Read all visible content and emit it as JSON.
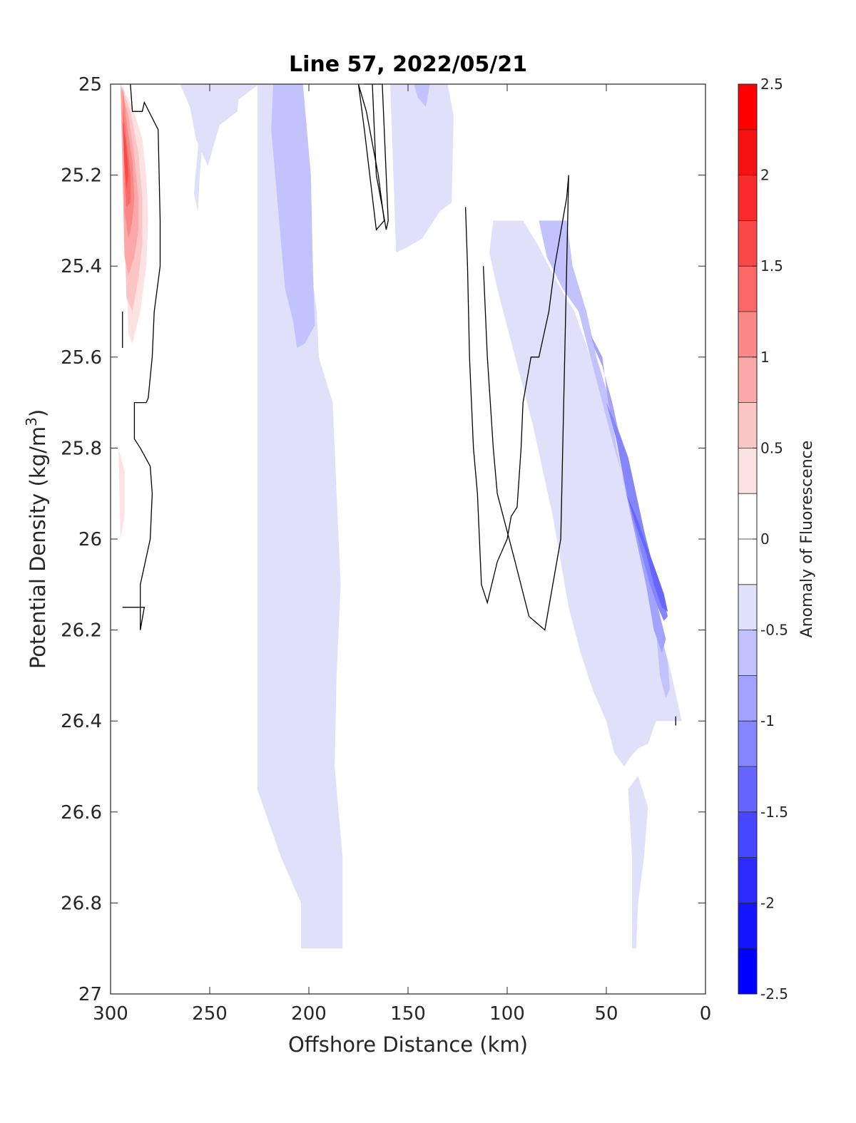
{
  "chart_data": {
    "type": "filled-contour",
    "title": "Line 57, 2022/05/21",
    "xlabel": "Offshore Distance (km)",
    "ylabel_main": "Potential Density (kg/m",
    "ylabel_sup": "3",
    "ylabel_close": ")",
    "colorbar_label": "Anomaly of Fluorescence",
    "xlim": [
      300,
      0
    ],
    "x_reversed": true,
    "ylim": [
      25,
      27
    ],
    "y_reversed": true,
    "x_ticks": [
      300,
      250,
      200,
      150,
      100,
      50,
      0
    ],
    "x_tick_labels": [
      "300",
      "250",
      "200",
      "150",
      "100",
      "50",
      "0"
    ],
    "y_ticks": [
      25,
      25.2,
      25.4,
      25.6,
      25.8,
      26,
      26.2,
      26.4,
      26.6,
      26.8,
      27
    ],
    "y_tick_labels": [
      "25",
      "25.2",
      "25.4",
      "25.6",
      "25.8",
      "26",
      "26.2",
      "26.4",
      "26.6",
      "26.8",
      "27"
    ],
    "colorbar_range": [
      -2.5,
      2.5
    ],
    "colorbar_ticks": [
      2.5,
      2,
      1.5,
      1,
      0.5,
      0,
      -0.5,
      -1,
      -1.5,
      -2,
      -2.5
    ],
    "colorbar_tick_labels": [
      "2.5",
      "2",
      "1.5",
      "1",
      "0.5",
      "0",
      "-0.5",
      "-1",
      "-1.5",
      "-2",
      "-2.5"
    ],
    "colormap": [
      "#0000ff",
      "#1414ff",
      "#2b2bff",
      "#4747ff",
      "#6666ff",
      "#8585ff",
      "#a3a3ff",
      "#c2c2ff",
      "#e0e0fa",
      "#ffffff",
      "#ffffff",
      "#fde2e2",
      "#fcc6c6",
      "#fca8a8",
      "#fb8888",
      "#fa6868",
      "#f94848",
      "#f82a2a",
      "#f71212",
      "#ff0000"
    ],
    "contour_regions": [
      {
        "name": "negative-band-offshore-main",
        "level": -0.25,
        "color": "#e0e0fa",
        "x": [
          225,
          220,
          215,
          211,
          207,
          205,
          203,
          204,
          199,
          196,
          195,
          188,
          186,
          184,
          186,
          187,
          183,
          183,
          204,
          204,
          214,
          222,
          226,
          226
        ],
        "y": [
          25.0,
          25.0,
          25.0,
          25.0,
          25.0,
          25.0,
          25.0,
          25.3,
          25.4,
          25.5,
          25.6,
          25.7,
          25.9,
          26.1,
          26.3,
          26.5,
          26.7,
          26.9,
          26.9,
          26.8,
          26.7,
          26.6,
          26.55,
          25.0
        ]
      },
      {
        "name": "negative-band-offshore-west",
        "level": -0.25,
        "color": "#e0e0fa",
        "x": [
          253,
          246,
          242,
          238,
          232,
          225,
          225,
          253,
          255,
          256,
          258,
          253
        ],
        "y": [
          25.0,
          25.0,
          25.0,
          25.0,
          25.0,
          25.0,
          25.0,
          25.09,
          25.2,
          25.28,
          25.24,
          25.0
        ]
      },
      {
        "name": "negative-band-offshore-west-2",
        "level": -0.25,
        "color": "#e0e0fa",
        "x": [
          253,
          265,
          260,
          257,
          251,
          245,
          236,
          235,
          253
        ],
        "y": [
          25.0,
          25.0,
          25.05,
          25.12,
          25.18,
          25.09,
          25.06,
          25.0,
          25.0
        ]
      },
      {
        "name": "negative-band-mid",
        "level": -0.25,
        "color": "#e0e0fa",
        "x": [
          159,
          130,
          127,
          128,
          134,
          143,
          151,
          156,
          159
        ],
        "y": [
          25.0,
          25.0,
          25.07,
          25.26,
          25.28,
          25.34,
          25.36,
          25.37,
          25.0
        ]
      },
      {
        "name": "negative-band-coastal",
        "level": -0.25,
        "color": "#e0e0fa",
        "x": [
          92,
          107,
          109,
          105,
          99,
          93,
          87,
          82,
          77,
          73,
          69,
          63,
          57,
          50,
          46,
          41,
          38,
          34,
          29,
          25,
          20,
          15,
          12,
          17,
          23,
          27,
          34,
          37,
          42,
          50,
          58,
          66,
          73,
          79,
          85,
          92
        ],
        "y": [
          25.3,
          25.3,
          25.37,
          25.45,
          25.55,
          25.65,
          25.75,
          25.85,
          25.95,
          26.05,
          26.15,
          26.25,
          26.33,
          26.4,
          26.47,
          26.5,
          26.48,
          26.46,
          26.45,
          26.4,
          26.4,
          26.4,
          26.4,
          26.3,
          26.2,
          26.1,
          26.0,
          25.9,
          25.8,
          25.7,
          25.6,
          25.5,
          25.45,
          25.4,
          25.35,
          25.3
        ]
      },
      {
        "name": "negative-band-deep-coastal",
        "level": -0.25,
        "color": "#e0e0fa",
        "x": [
          39,
          34,
          29,
          31,
          34,
          35,
          37,
          37,
          39
        ],
        "y": [
          26.55,
          26.52,
          26.59,
          26.7,
          26.8,
          26.9,
          26.9,
          26.7,
          26.55
        ]
      },
      {
        "name": "negative-band-offshore-level2",
        "level": -0.5,
        "color": "#c2c2ff",
        "x": [
          218,
          203,
          199,
          198,
          197,
          202,
          206,
          208,
          212,
          215,
          219,
          218
        ],
        "y": [
          25.0,
          25.0,
          25.2,
          25.4,
          25.53,
          25.57,
          25.58,
          25.52,
          25.45,
          25.3,
          25.1,
          25.0
        ]
      },
      {
        "name": "negative-band-mid-level2",
        "level": -0.5,
        "color": "#c2c2ff",
        "x": [
          147,
          139,
          141,
          145,
          147
        ],
        "y": [
          25.0,
          25.0,
          25.05,
          25.03,
          25.0
        ]
      },
      {
        "name": "negative-band-coastal-level2",
        "level": -0.5,
        "color": "#c2c2ff",
        "x": [
          84,
          70,
          67,
          60,
          55,
          48,
          45,
          40,
          35,
          30,
          25,
          23,
          20,
          18,
          19,
          23,
          27,
          33,
          39,
          46,
          52,
          58,
          64,
          72,
          80,
          84
        ],
        "y": [
          25.3,
          25.3,
          25.4,
          25.5,
          25.6,
          25.7,
          25.8,
          25.9,
          26.0,
          26.1,
          26.2,
          26.3,
          26.35,
          26.33,
          26.27,
          26.2,
          26.1,
          26.0,
          25.9,
          25.8,
          25.7,
          25.6,
          25.5,
          25.45,
          25.38,
          25.3
        ]
      },
      {
        "name": "negative-band-coastal-level3",
        "level": -0.75,
        "color": "#a3a3ff",
        "x": [
          58,
          52,
          49,
          44,
          40,
          35,
          30,
          26,
          22,
          20,
          24,
          27,
          32,
          37,
          42,
          47,
          52,
          56,
          58
        ],
        "y": [
          25.55,
          25.6,
          25.7,
          25.8,
          25.9,
          26.0,
          26.1,
          26.2,
          26.25,
          26.22,
          26.15,
          26.08,
          26.0,
          25.9,
          25.8,
          25.7,
          25.62,
          25.58,
          25.55
        ]
      },
      {
        "name": "negative-band-coastal-level4",
        "level": -1.0,
        "color": "#8585ff",
        "x": [
          50,
          45,
          42,
          37,
          33,
          28,
          24,
          21,
          19,
          22,
          27,
          31,
          35,
          39,
          44,
          48,
          50
        ],
        "y": [
          25.7,
          25.78,
          25.85,
          25.95,
          26.02,
          26.1,
          26.15,
          26.18,
          26.17,
          26.12,
          26.05,
          25.98,
          25.9,
          25.82,
          25.76,
          25.72,
          25.7
        ]
      },
      {
        "name": "negative-band-coastal-level5",
        "level": -1.25,
        "color": "#6666ff",
        "x": [
          40,
          35,
          30,
          26,
          22,
          19,
          21,
          25,
          30,
          35,
          40
        ],
        "y": [
          25.9,
          25.97,
          26.03,
          26.1,
          26.15,
          26.16,
          26.12,
          26.07,
          26.01,
          25.95,
          25.9
        ]
      },
      {
        "name": "positive-band-offshore",
        "level": 0.25,
        "color": "#fde2e2",
        "x": [
          295,
          289,
          284,
          282,
          281,
          282,
          285,
          289,
          291,
          295
        ],
        "y": [
          25.0,
          25.05,
          25.12,
          25.2,
          25.3,
          25.4,
          25.5,
          25.57,
          25.55,
          25.0
        ]
      },
      {
        "name": "positive-band-offshore-deep",
        "level": 0.25,
        "color": "#fde2e2",
        "x": [
          296,
          293,
          293,
          295,
          296
        ],
        "y": [
          25.8,
          25.85,
          25.95,
          26.0,
          25.8
        ]
      },
      {
        "name": "positive-band-offshore-2",
        "level": 0.5,
        "color": "#fcc6c6",
        "x": [
          295,
          290,
          286,
          284,
          284,
          286,
          289,
          292,
          295
        ],
        "y": [
          25.0,
          25.06,
          25.15,
          25.25,
          25.35,
          25.43,
          25.5,
          25.47,
          25.0
        ]
      },
      {
        "name": "positive-band-offshore-3",
        "level": 0.75,
        "color": "#fca8a8",
        "x": [
          295,
          291,
          288,
          286,
          286,
          288,
          291,
          293,
          295
        ],
        "y": [
          25.0,
          25.07,
          25.16,
          25.25,
          25.32,
          25.38,
          25.42,
          25.38,
          25.0
        ]
      },
      {
        "name": "positive-band-offshore-4",
        "level": 1.0,
        "color": "#fb8888",
        "x": [
          294,
          292,
          289,
          288,
          289,
          291,
          293,
          294
        ],
        "y": [
          25.0,
          25.08,
          25.17,
          25.25,
          25.3,
          25.34,
          25.28,
          25.0
        ]
      },
      {
        "name": "positive-band-offshore-5",
        "level": 1.25,
        "color": "#fa6868",
        "x": [
          294,
          292,
          290,
          290,
          292,
          293,
          294
        ],
        "y": [
          25.05,
          25.12,
          25.2,
          25.26,
          25.27,
          25.18,
          25.05
        ]
      },
      {
        "name": "positive-band-offshore-6",
        "level": 1.5,
        "color": "#f94848",
        "x": [
          294,
          292,
          291,
          292,
          293,
          294
        ],
        "y": [
          25.08,
          25.14,
          25.2,
          25.23,
          25.18,
          25.08
        ]
      }
    ],
    "zero_contours": [
      {
        "name": "zero-contour-offshore",
        "x": [
          290,
          289,
          284,
          283,
          276,
          275,
          275,
          278,
          279,
          281,
          282,
          288,
          288,
          285,
          280,
          279,
          280,
          285,
          285,
          283,
          291,
          294
        ],
        "y": [
          25.0,
          25.06,
          25.06,
          25.04,
          25.1,
          25.3,
          25.4,
          25.5,
          25.6,
          25.69,
          25.7,
          25.7,
          25.78,
          25.8,
          25.84,
          25.9,
          26.0,
          26.1,
          26.2,
          26.15,
          26.15,
          26.15
        ]
      },
      {
        "name": "zero-contour-offshore-inner",
        "x": [
          294,
          294
        ],
        "y": [
          25.5,
          25.58
        ]
      },
      {
        "name": "zero-contour-mid",
        "x": [
          172,
          168,
          163,
          161,
          160,
          161,
          163,
          166,
          168,
          172
        ],
        "y": [
          25.0,
          25.0,
          25.0,
          25.2,
          25.3,
          25.32,
          25.27,
          25.2,
          25.0,
          25.0
        ]
      },
      {
        "name": "zero-contour-mid-2",
        "x": [
          175,
          171,
          165,
          162,
          166,
          172,
          175
        ],
        "y": [
          25.0,
          25.06,
          25.2,
          25.3,
          25.32,
          25.1,
          25.0
        ]
      },
      {
        "name": "zero-contour-coastal",
        "x": [
          121,
          120,
          119,
          117,
          115,
          113,
          110,
          105,
          100,
          98,
          95,
          93,
          92,
          90,
          88,
          84,
          79,
          76,
          72,
          70,
          69,
          73,
          81,
          89,
          96,
          99,
          102,
          105,
          107,
          110,
          112
        ],
        "y": [
          25.27,
          25.4,
          25.6,
          25.8,
          25.9,
          26.1,
          26.14,
          26.05,
          26.0,
          25.95,
          25.93,
          25.8,
          25.7,
          25.65,
          25.6,
          25.6,
          25.5,
          25.4,
          25.3,
          25.25,
          25.2,
          26.0,
          26.2,
          26.17,
          26.05,
          26.0,
          25.95,
          25.9,
          25.8,
          25.6,
          25.4
        ]
      },
      {
        "name": "zero-contour-coastal-tip",
        "x": [
          15,
          15
        ],
        "y": [
          26.39,
          26.41
        ]
      }
    ]
  }
}
